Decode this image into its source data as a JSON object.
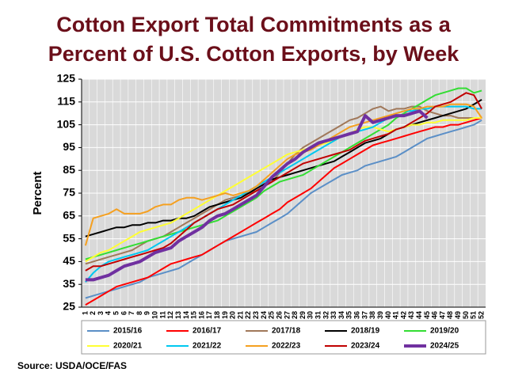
{
  "chart_data": {
    "type": "line",
    "title_lines": [
      "Cotton Export Total Commitments as a",
      "Percent of U.S. Cotton Exports, by Week"
    ],
    "ylabel": "Percent",
    "source": "Source:  USDA/OCE/FAS",
    "categories": [
      1,
      2,
      3,
      4,
      5,
      6,
      7,
      8,
      9,
      10,
      11,
      12,
      13,
      14,
      15,
      16,
      17,
      18,
      19,
      20,
      21,
      22,
      23,
      24,
      25,
      26,
      27,
      28,
      29,
      30,
      31,
      32,
      33,
      34,
      35,
      36,
      37,
      38,
      39,
      40,
      41,
      42,
      43,
      44,
      45,
      46,
      47,
      48,
      49,
      50,
      51,
      52
    ],
    "ylim": [
      25,
      125
    ],
    "yticks": [
      25,
      35,
      45,
      55,
      65,
      75,
      85,
      95,
      105,
      115,
      125
    ],
    "grid": true,
    "series": [
      {
        "name": "2015/16",
        "color": "#5b8fc7",
        "values": [
          29,
          30,
          31,
          32,
          33,
          34,
          35,
          36,
          38,
          39,
          40,
          41,
          42,
          44,
          46,
          48,
          50,
          52,
          54,
          55,
          56,
          57,
          58,
          60,
          62,
          64,
          66,
          69,
          72,
          75,
          77,
          79,
          81,
          83,
          84,
          85,
          87,
          88,
          89,
          90,
          91,
          93,
          95,
          97,
          99,
          100,
          101,
          102,
          103,
          104,
          105,
          107
        ]
      },
      {
        "name": "2016/17",
        "color": "#ff0000",
        "values": [
          26,
          28,
          30,
          32,
          34,
          35,
          36,
          37,
          38,
          40,
          42,
          44,
          45,
          46,
          47,
          48,
          50,
          52,
          54,
          56,
          58,
          60,
          62,
          64,
          66,
          68,
          71,
          73,
          75,
          77,
          80,
          83,
          86,
          88,
          90,
          92,
          94,
          96,
          97,
          98,
          99,
          100,
          101,
          102,
          103,
          104,
          104,
          105,
          105,
          106,
          107,
          108
        ]
      },
      {
        "name": "2017/18",
        "color": "#a0785a",
        "values": [
          44,
          45,
          46,
          47,
          48,
          49,
          50,
          52,
          54,
          55,
          56,
          58,
          60,
          62,
          64,
          66,
          68,
          70,
          72,
          73,
          74,
          75,
          76,
          78,
          80,
          84,
          88,
          92,
          95,
          97,
          99,
          101,
          103,
          105,
          107,
          108,
          110,
          112,
          113,
          111,
          112,
          112,
          113,
          113,
          111,
          110,
          109,
          109,
          108,
          108,
          108,
          108
        ]
      },
      {
        "name": "2018/19",
        "color": "#000000",
        "values": [
          56,
          57,
          58,
          59,
          60,
          60,
          61,
          61,
          62,
          62,
          63,
          63,
          64,
          64,
          65,
          67,
          69,
          70,
          71,
          72,
          73,
          75,
          77,
          79,
          81,
          82,
          83,
          84,
          85,
          86,
          87,
          88,
          89,
          91,
          93,
          95,
          97,
          98,
          99,
          101,
          103,
          104,
          105,
          106,
          107,
          108,
          109,
          110,
          111,
          112,
          114,
          116
        ]
      },
      {
        "name": "2019/20",
        "color": "#33dd33",
        "values": [
          46,
          47,
          48,
          49,
          50,
          51,
          52,
          53,
          54,
          55,
          56,
          57,
          58,
          59,
          60,
          61,
          62,
          63,
          65,
          67,
          69,
          71,
          73,
          76,
          78,
          80,
          81,
          82,
          83,
          85,
          87,
          89,
          91,
          93,
          95,
          97,
          99,
          101,
          103,
          105,
          108,
          110,
          112,
          114,
          116,
          118,
          119,
          120,
          121,
          121,
          119,
          120
        ]
      },
      {
        "name": "2020/21",
        "color": "#ffff33",
        "values": [
          45,
          47,
          49,
          50,
          52,
          54,
          56,
          58,
          59,
          60,
          61,
          62,
          64,
          66,
          68,
          70,
          72,
          74,
          76,
          78,
          80,
          82,
          84,
          86,
          88,
          90,
          92,
          93,
          94,
          95,
          96,
          97,
          98,
          100,
          101,
          103,
          104,
          104,
          103,
          102,
          103,
          104,
          105,
          105,
          106,
          106,
          107,
          107,
          107,
          107,
          108,
          108
        ]
      },
      {
        "name": "2021/22",
        "color": "#00c8f0",
        "values": [
          36,
          40,
          43,
          45,
          46,
          47,
          48,
          49,
          50,
          52,
          54,
          56,
          58,
          60,
          62,
          64,
          66,
          68,
          70,
          72,
          74,
          76,
          78,
          80,
          82,
          84,
          86,
          88,
          90,
          92,
          94,
          96,
          98,
          100,
          101,
          102,
          103,
          104,
          106,
          108,
          110,
          111,
          111,
          112,
          112,
          113,
          113,
          113,
          113,
          113,
          112,
          112
        ]
      },
      {
        "name": "2022/23",
        "color": "#f5a020",
        "values": [
          52,
          64,
          65,
          66,
          68,
          66,
          66,
          66,
          67,
          69,
          70,
          70,
          72,
          73,
          73,
          72,
          73,
          74,
          75,
          74,
          75,
          76,
          78,
          81,
          84,
          87,
          90,
          92,
          93,
          94,
          96,
          98,
          100,
          102,
          104,
          105,
          106,
          107,
          108,
          109,
          110,
          111,
          112,
          112,
          113,
          113,
          113,
          114,
          114,
          114,
          113,
          108
        ]
      },
      {
        "name": "2023/24",
        "color": "#c00000",
        "values": [
          41,
          43,
          43,
          44,
          45,
          46,
          47,
          48,
          49,
          50,
          51,
          53,
          56,
          59,
          62,
          64,
          66,
          68,
          69,
          70,
          72,
          74,
          76,
          78,
          80,
          82,
          84,
          86,
          88,
          89,
          90,
          91,
          92,
          93,
          94,
          96,
          98,
          99,
          100,
          101,
          103,
          104,
          106,
          108,
          110,
          113,
          114,
          115,
          117,
          119,
          118,
          112
        ]
      },
      {
        "name": "2024/25",
        "color": "#7030a0",
        "width": 4,
        "values": [
          37,
          37,
          38,
          39,
          41,
          43,
          44,
          45,
          47,
          49,
          50,
          51,
          54,
          56,
          58,
          60,
          63,
          65,
          66,
          68,
          70,
          72,
          74,
          78,
          82,
          85,
          88,
          90,
          93,
          95,
          97,
          98,
          99,
          100,
          101,
          102,
          109,
          106,
          107,
          108,
          109,
          109,
          110,
          111,
          108,
          null,
          null,
          null,
          null,
          null,
          null,
          null
        ]
      }
    ]
  }
}
